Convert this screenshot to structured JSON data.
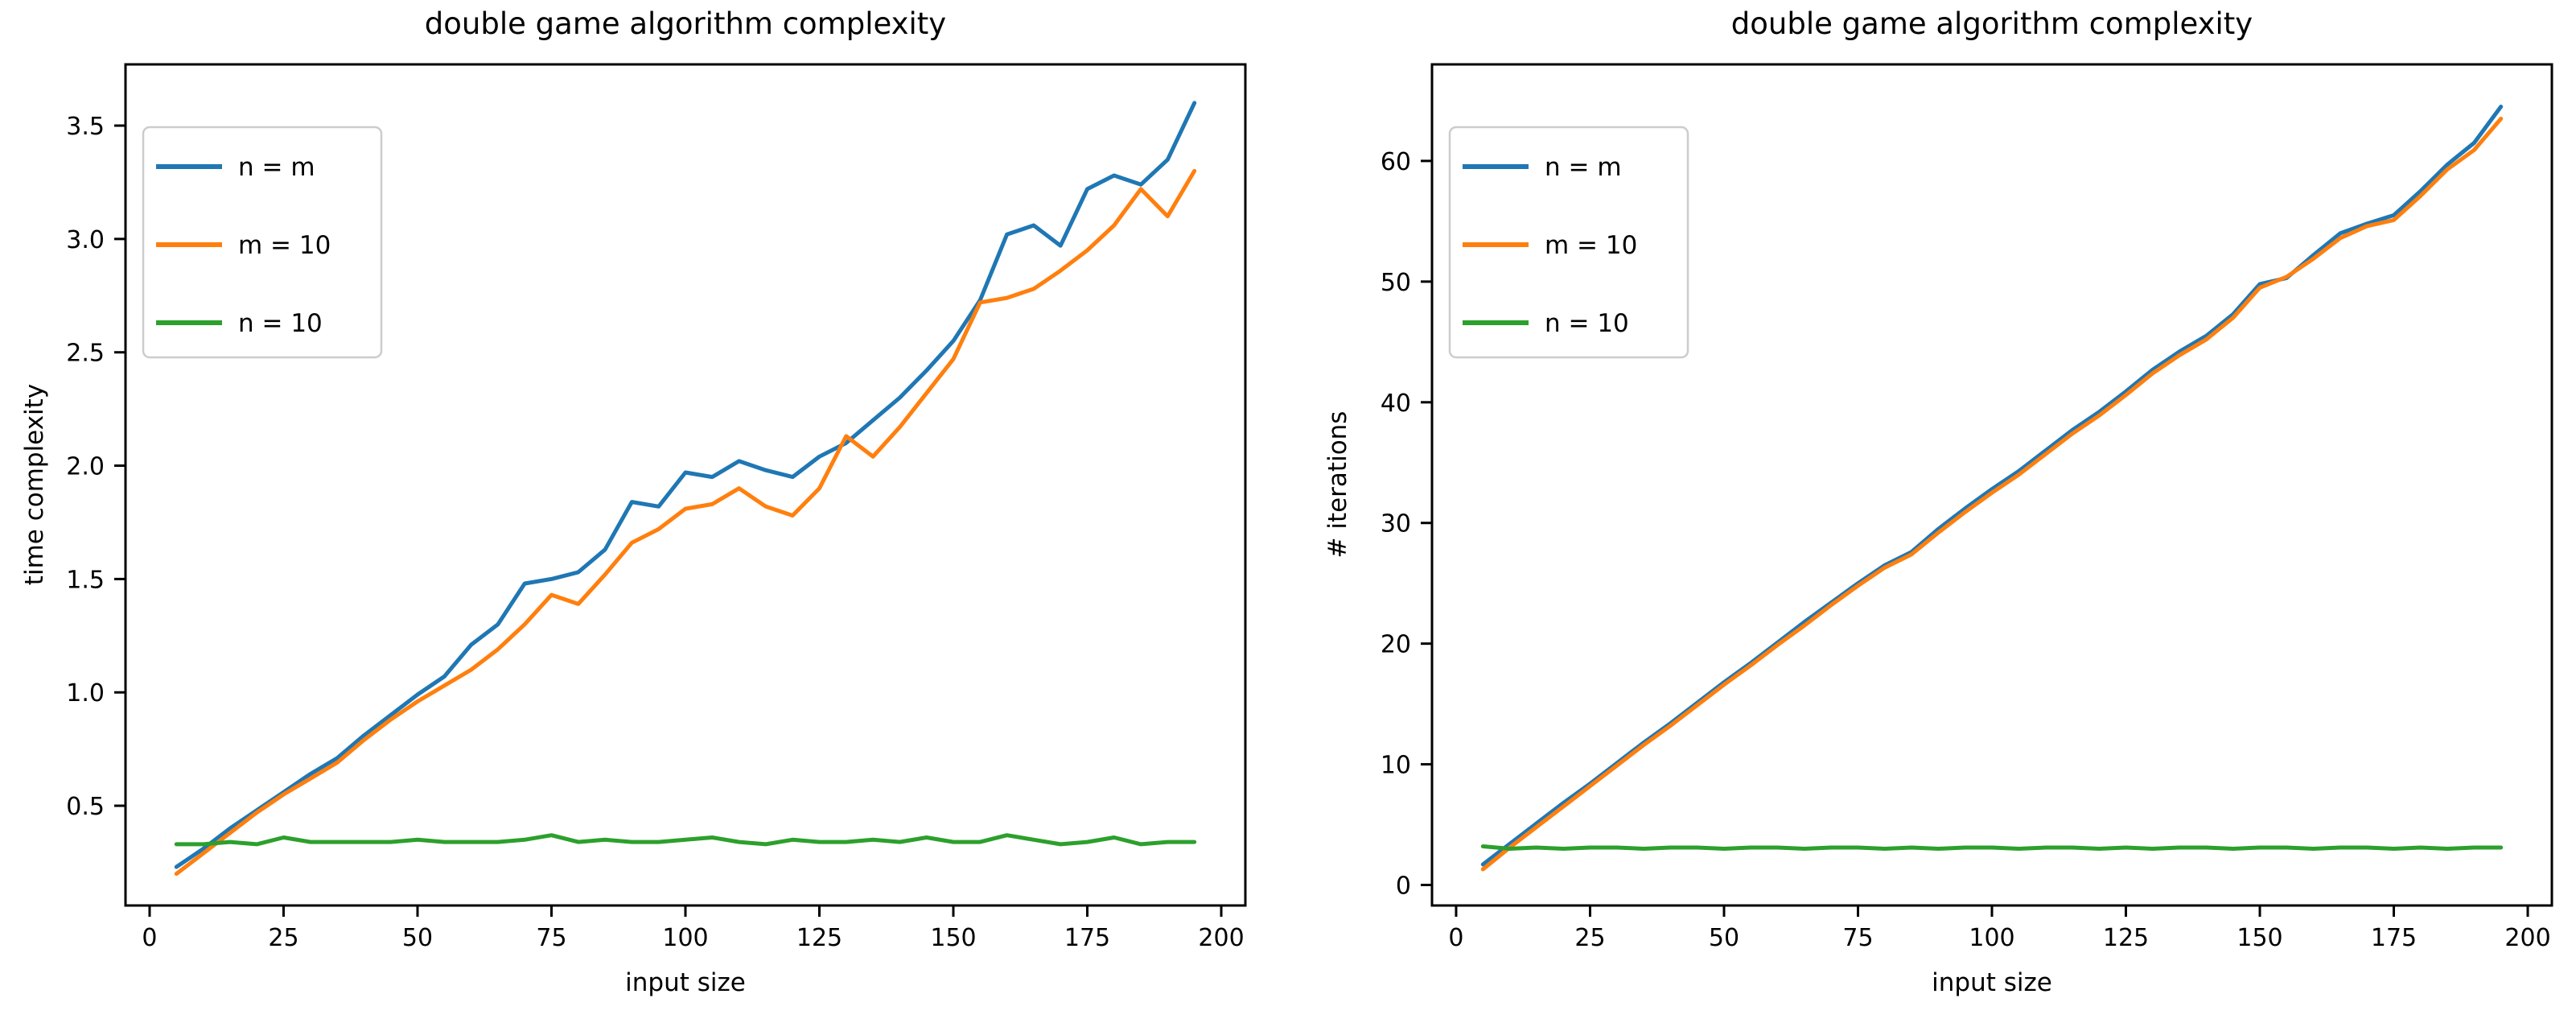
{
  "colors": {
    "blue": "#1f77b4",
    "orange": "#ff7f0e",
    "green": "#2ca02c",
    "text": "#000000",
    "spine": "#000000",
    "legend_border": "#cccccc",
    "background": "#ffffff"
  },
  "chart_data": [
    {
      "type": "line",
      "title": "double game algorithm complexity",
      "xlabel": "input size",
      "ylabel": "time complexity",
      "xlim": [
        -4.5,
        204.5
      ],
      "ylim": [
        0.06,
        3.77
      ],
      "xticks": [
        0,
        25,
        50,
        75,
        100,
        125,
        150,
        175,
        200
      ],
      "xtick_labels": [
        "0",
        "25",
        "50",
        "75",
        "100",
        "125",
        "150",
        "175",
        "200"
      ],
      "yticks": [
        0.5,
        1.0,
        1.5,
        2.0,
        2.5,
        3.0,
        3.5
      ],
      "ytick_labels": [
        "0.5",
        "1.0",
        "1.5",
        "2.0",
        "2.5",
        "3.0",
        "3.5"
      ],
      "grid": false,
      "legend_position": "upper left",
      "x": [
        5,
        10,
        15,
        20,
        25,
        30,
        35,
        40,
        45,
        50,
        55,
        60,
        65,
        70,
        75,
        80,
        85,
        90,
        95,
        100,
        105,
        110,
        115,
        120,
        125,
        130,
        135,
        140,
        145,
        150,
        155,
        160,
        165,
        170,
        175,
        180,
        185,
        190,
        195
      ],
      "series": [
        {
          "name": "n = m",
          "color": "#1f77b4",
          "values": [
            0.23,
            0.31,
            0.4,
            0.48,
            0.56,
            0.64,
            0.71,
            0.81,
            0.9,
            0.99,
            1.07,
            1.21,
            1.3,
            1.48,
            1.5,
            1.53,
            1.63,
            1.84,
            1.82,
            1.97,
            1.95,
            2.02,
            1.98,
            1.95,
            2.04,
            2.1,
            2.2,
            2.3,
            2.42,
            2.55,
            2.73,
            3.02,
            3.06,
            2.97,
            3.22,
            3.28,
            3.24,
            3.35,
            3.6
          ]
        },
        {
          "name": "m = 10",
          "color": "#ff7f0e",
          "values": [
            0.2,
            0.29,
            0.38,
            0.47,
            0.55,
            0.62,
            0.69,
            0.79,
            0.88,
            0.96,
            1.03,
            1.1,
            1.19,
            1.3,
            1.43,
            1.39,
            1.52,
            1.66,
            1.72,
            1.81,
            1.83,
            1.9,
            1.82,
            1.78,
            1.9,
            2.13,
            2.04,
            2.17,
            2.32,
            2.47,
            2.72,
            2.74,
            2.78,
            2.86,
            2.95,
            3.06,
            3.22,
            3.1,
            3.3
          ]
        },
        {
          "name": "n = 10",
          "color": "#2ca02c",
          "values": [
            0.33,
            0.33,
            0.34,
            0.33,
            0.36,
            0.34,
            0.34,
            0.34,
            0.34,
            0.35,
            0.34,
            0.34,
            0.34,
            0.35,
            0.37,
            0.34,
            0.35,
            0.34,
            0.34,
            0.35,
            0.36,
            0.34,
            0.33,
            0.35,
            0.34,
            0.34,
            0.35,
            0.34,
            0.36,
            0.34,
            0.34,
            0.37,
            0.35,
            0.33,
            0.34,
            0.36,
            0.33,
            0.34,
            0.34
          ]
        }
      ]
    },
    {
      "type": "line",
      "title": "double game algorithm complexity",
      "xlabel": "input size",
      "ylabel": "# iterations",
      "xlim": [
        -4.5,
        204.5
      ],
      "ylim": [
        -1.7,
        68.0
      ],
      "xticks": [
        0,
        25,
        50,
        75,
        100,
        125,
        150,
        175,
        200
      ],
      "xtick_labels": [
        "0",
        "25",
        "50",
        "75",
        "100",
        "125",
        "150",
        "175",
        "200"
      ],
      "yticks": [
        0,
        10,
        20,
        30,
        40,
        50,
        60
      ],
      "ytick_labels": [
        "0",
        "10",
        "20",
        "30",
        "40",
        "50",
        "60"
      ],
      "grid": false,
      "legend_position": "upper left",
      "x": [
        5,
        10,
        15,
        20,
        25,
        30,
        35,
        40,
        45,
        50,
        55,
        60,
        65,
        70,
        75,
        80,
        85,
        90,
        95,
        100,
        105,
        110,
        115,
        120,
        125,
        130,
        135,
        140,
        145,
        150,
        155,
        160,
        165,
        170,
        175,
        180,
        185,
        190,
        195
      ],
      "series": [
        {
          "name": "n = m",
          "color": "#1f77b4",
          "values": [
            1.7,
            3.4,
            5.1,
            6.8,
            8.4,
            10.1,
            11.8,
            13.4,
            15.1,
            16.8,
            18.4,
            20.1,
            21.8,
            23.4,
            25.0,
            26.5,
            27.6,
            29.5,
            31.2,
            32.8,
            34.3,
            36.0,
            37.7,
            39.2,
            40.9,
            42.7,
            44.2,
            45.5,
            47.3,
            49.8,
            50.3,
            52.2,
            54.0,
            54.8,
            55.5,
            57.5,
            59.7,
            61.5,
            64.5
          ]
        },
        {
          "name": "m = 10",
          "color": "#ff7f0e",
          "values": [
            1.3,
            3.1,
            4.8,
            6.5,
            8.2,
            9.9,
            11.6,
            13.2,
            14.9,
            16.6,
            18.2,
            19.9,
            21.5,
            23.2,
            24.8,
            26.3,
            27.4,
            29.2,
            30.9,
            32.5,
            34.0,
            35.7,
            37.4,
            38.9,
            40.6,
            42.4,
            43.9,
            45.2,
            47.0,
            49.5,
            50.4,
            51.9,
            53.6,
            54.6,
            55.1,
            57.1,
            59.3,
            60.9,
            63.5
          ]
        },
        {
          "name": "n = 10",
          "color": "#2ca02c",
          "values": [
            3.2,
            3.0,
            3.1,
            3.0,
            3.1,
            3.1,
            3.0,
            3.1,
            3.1,
            3.0,
            3.1,
            3.1,
            3.0,
            3.1,
            3.1,
            3.0,
            3.1,
            3.0,
            3.1,
            3.1,
            3.0,
            3.1,
            3.1,
            3.0,
            3.1,
            3.0,
            3.1,
            3.1,
            3.0,
            3.1,
            3.1,
            3.0,
            3.1,
            3.1,
            3.0,
            3.1,
            3.0,
            3.1,
            3.1
          ]
        }
      ]
    }
  ]
}
